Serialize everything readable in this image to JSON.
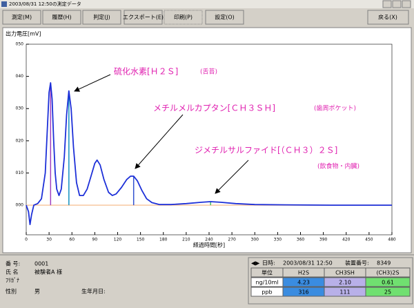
{
  "window": {
    "title": "2003/08/31 12:50の測定データ"
  },
  "toolbar": {
    "buttons": [
      "測定(M)",
      "履歴(H)",
      "判定(J)",
      "エクスポート(E)",
      "印刷(P)",
      "設定(O)"
    ],
    "back": "戻る(X)"
  },
  "chart_data": {
    "type": "line",
    "ylabel": "出力電圧[mV]",
    "xlabel": "経過時間[秒]",
    "x": [
      0,
      3,
      5,
      7,
      10,
      15,
      20,
      25,
      28,
      30,
      32,
      34,
      36,
      38,
      40,
      43,
      46,
      50,
      53,
      56,
      59,
      62,
      66,
      70,
      75,
      80,
      85,
      90,
      93,
      97,
      102,
      108,
      113,
      118,
      125,
      132,
      137,
      141,
      146,
      152,
      158,
      165,
      175,
      190,
      210,
      230,
      242,
      255,
      275,
      300,
      340,
      400,
      480
    ],
    "values": [
      0,
      -2,
      -6,
      -3,
      0,
      0.5,
      2,
      10,
      25,
      35,
      38,
      33,
      20,
      10,
      5,
      3,
      5,
      15,
      28,
      35.5,
      30,
      18,
      7,
      3,
      3,
      5,
      9,
      13,
      14,
      12.5,
      8,
      4,
      3,
      3.5,
      5.5,
      8,
      9,
      9,
      7.5,
      4.5,
      2,
      0.8,
      0.2,
      0.2,
      0.5,
      0.9,
      1.1,
      0.9,
      0.5,
      0.2,
      0.1,
      0,
      0
    ],
    "color": "#1c2fd8",
    "markers": [
      {
        "x": 32,
        "value": 38,
        "color": "#a040c0"
      },
      {
        "x": 56,
        "value": 35.5,
        "color": "#1090c0"
      },
      {
        "x": 141,
        "value": 9,
        "color": "#3050d0"
      },
      {
        "x": 242,
        "value": 1.1,
        "color": "#40c060"
      }
    ],
    "xlim": [
      0,
      480
    ],
    "ylim": [
      -9.2,
      50
    ],
    "xticks": [
      0,
      30,
      60,
      90,
      120,
      150,
      180,
      210,
      240,
      270,
      300,
      330,
      360,
      390,
      420,
      450,
      480
    ],
    "yticks": [
      {
        "value": 0,
        "label": "000"
      },
      {
        "value": 10,
        "label": "010"
      },
      {
        "value": 20,
        "label": "020"
      },
      {
        "value": 30,
        "label": "030"
      },
      {
        "value": 40,
        "label": "040"
      },
      {
        "value": 50,
        "label": "050"
      }
    ],
    "annotations": [
      {
        "name": "硫化水素[Ｈ２Ｓ]",
        "note": "(舌苔)"
      },
      {
        "name": "メチルメルカプタン[ＣＨ３ＳＨ]",
        "note": "(歯周ポケット)"
      },
      {
        "name": "ジメチルサルファイド[（ＣＨ３）２Ｓ]",
        "note": "(飲食物・内臓)"
      }
    ]
  },
  "patient": {
    "number_label": "番 号:",
    "number": "0001",
    "name_label": "氏 名",
    "name": "被験者A 様",
    "kana_label": "ﾌﾘｶﾞﾅ",
    "sex_label": "性別",
    "sex": "男",
    "birth_label": "生年月日:"
  },
  "measurement": {
    "date_label": "日時:",
    "date": "2003/08/31 12:50",
    "device_label": "装置番号:",
    "device": "8349",
    "table": {
      "header": [
        "単位",
        "H2S",
        "CH3SH",
        "(CH3)2S"
      ],
      "rows": [
        [
          "ng/10ml",
          "4.23",
          "2.10",
          "0.61"
        ],
        [
          "ppb",
          "316",
          "111",
          "25"
        ]
      ]
    }
  }
}
